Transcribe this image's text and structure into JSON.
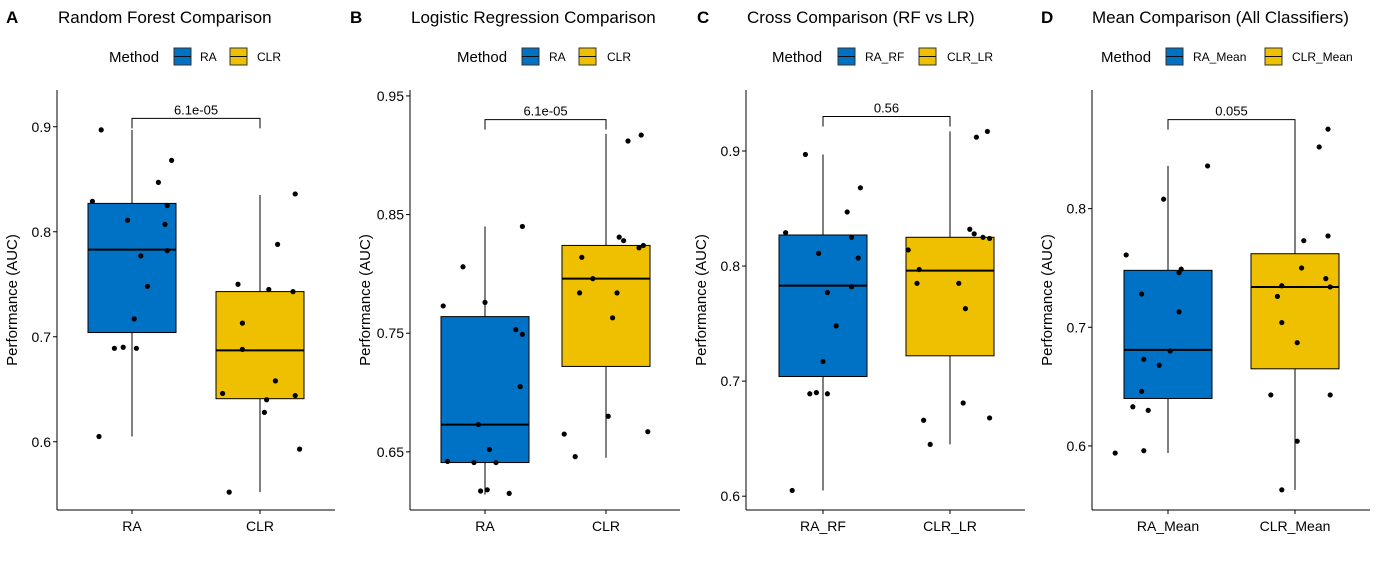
{
  "chart_data": [
    {
      "type": "box",
      "panel_letter": "A",
      "title": "Random Forest Comparison",
      "legend_title": "Method",
      "legend_position": "top",
      "categories": [
        "RA",
        "CLR"
      ],
      "colors": [
        "#0072C6",
        "#EFC000"
      ],
      "xlabel": "",
      "ylabel": "Performance (AUC)",
      "ylim": [
        0.535,
        0.935
      ],
      "yticks": [
        0.6,
        0.7,
        0.8,
        0.9
      ],
      "ytick_labels": [
        "0.6",
        "0.7",
        "0.8",
        "0.9"
      ],
      "boxes": [
        {
          "name": "RA",
          "q1": 0.704,
          "median": 0.783,
          "q3": 0.827,
          "whisker_low": 0.605,
          "whisker_high": 0.897
        },
        {
          "name": "CLR",
          "q1": 0.641,
          "median": 0.687,
          "q3": 0.743,
          "whisker_low": 0.552,
          "whisker_high": 0.835
        }
      ],
      "points": [
        {
          "group": "RA",
          "jitter": -0.14,
          "y": 0.897
        },
        {
          "group": "RA",
          "jitter": 0.18,
          "y": 0.868
        },
        {
          "group": "RA",
          "jitter": 0.12,
          "y": 0.847
        },
        {
          "group": "RA",
          "jitter": -0.18,
          "y": 0.829
        },
        {
          "group": "RA",
          "jitter": 0.16,
          "y": 0.825
        },
        {
          "group": "RA",
          "jitter": -0.02,
          "y": 0.811
        },
        {
          "group": "RA",
          "jitter": 0.15,
          "y": 0.807
        },
        {
          "group": "RA",
          "jitter": 0.16,
          "y": 0.782
        },
        {
          "group": "RA",
          "jitter": 0.04,
          "y": 0.777
        },
        {
          "group": "RA",
          "jitter": 0.07,
          "y": 0.748
        },
        {
          "group": "RA",
          "jitter": 0.01,
          "y": 0.717
        },
        {
          "group": "RA",
          "jitter": -0.04,
          "y": 0.69
        },
        {
          "group": "RA",
          "jitter": 0.02,
          "y": 0.689
        },
        {
          "group": "RA",
          "jitter": -0.08,
          "y": 0.689
        },
        {
          "group": "RA",
          "jitter": -0.15,
          "y": 0.605
        },
        {
          "group": "CLR",
          "jitter": 0.16,
          "y": 0.836
        },
        {
          "group": "CLR",
          "jitter": 0.08,
          "y": 0.788
        },
        {
          "group": "CLR",
          "jitter": -0.1,
          "y": 0.75
        },
        {
          "group": "CLR",
          "jitter": 0.04,
          "y": 0.745
        },
        {
          "group": "CLR",
          "jitter": 0.15,
          "y": 0.743
        },
        {
          "group": "CLR",
          "jitter": -0.08,
          "y": 0.713
        },
        {
          "group": "CLR",
          "jitter": -0.08,
          "y": 0.688
        },
        {
          "group": "CLR",
          "jitter": 0.07,
          "y": 0.658
        },
        {
          "group": "CLR",
          "jitter": -0.17,
          "y": 0.646
        },
        {
          "group": "CLR",
          "jitter": 0.16,
          "y": 0.644
        },
        {
          "group": "CLR",
          "jitter": 0.03,
          "y": 0.64
        },
        {
          "group": "CLR",
          "jitter": 0.02,
          "y": 0.628
        },
        {
          "group": "CLR",
          "jitter": 0.18,
          "y": 0.593
        },
        {
          "group": "CLR",
          "jitter": -0.14,
          "y": 0.552
        }
      ],
      "comparison": {
        "label": "6.1e-05",
        "y": 0.908
      }
    },
    {
      "type": "box",
      "panel_letter": "B",
      "title": "Logistic Regression Comparison",
      "legend_title": "Method",
      "legend_position": "top",
      "categories": [
        "RA",
        "CLR"
      ],
      "colors": [
        "#0072C6",
        "#EFC000"
      ],
      "xlabel": "",
      "ylabel": "Performance (AUC)",
      "ylim": [
        0.601,
        0.955
      ],
      "yticks": [
        0.65,
        0.75,
        0.85,
        0.95
      ],
      "ytick_labels": [
        "0.65",
        "0.75",
        "0.85",
        "0.95"
      ],
      "boxes": [
        {
          "name": "RA",
          "q1": 0.641,
          "median": 0.673,
          "q3": 0.764,
          "whisker_low": 0.614,
          "whisker_high": 0.84
        },
        {
          "name": "CLR",
          "q1": 0.722,
          "median": 0.796,
          "q3": 0.824,
          "whisker_low": 0.645,
          "whisker_high": 0.918
        }
      ],
      "points": [
        {
          "group": "RA",
          "jitter": 0.17,
          "y": 0.84
        },
        {
          "group": "RA",
          "jitter": -0.1,
          "y": 0.806
        },
        {
          "group": "RA",
          "jitter": 0.0,
          "y": 0.776
        },
        {
          "group": "RA",
          "jitter": -0.19,
          "y": 0.773
        },
        {
          "group": "RA",
          "jitter": 0.14,
          "y": 0.753
        },
        {
          "group": "RA",
          "jitter": 0.17,
          "y": 0.749
        },
        {
          "group": "RA",
          "jitter": 0.16,
          "y": 0.705
        },
        {
          "group": "RA",
          "jitter": -0.03,
          "y": 0.673
        },
        {
          "group": "RA",
          "jitter": 0.02,
          "y": 0.652
        },
        {
          "group": "RA",
          "jitter": -0.17,
          "y": 0.642
        },
        {
          "group": "RA",
          "jitter": -0.05,
          "y": 0.641
        },
        {
          "group": "RA",
          "jitter": 0.05,
          "y": 0.641
        },
        {
          "group": "RA",
          "jitter": -0.02,
          "y": 0.617
        },
        {
          "group": "RA",
          "jitter": 0.01,
          "y": 0.618
        },
        {
          "group": "RA",
          "jitter": 0.11,
          "y": 0.615
        },
        {
          "group": "CLR",
          "jitter": 0.16,
          "y": 0.917
        },
        {
          "group": "CLR",
          "jitter": 0.1,
          "y": 0.912
        },
        {
          "group": "CLR",
          "jitter": 0.06,
          "y": 0.831
        },
        {
          "group": "CLR",
          "jitter": 0.08,
          "y": 0.828
        },
        {
          "group": "CLR",
          "jitter": 0.15,
          "y": 0.822
        },
        {
          "group": "CLR",
          "jitter": 0.17,
          "y": 0.824
        },
        {
          "group": "CLR",
          "jitter": -0.11,
          "y": 0.814
        },
        {
          "group": "CLR",
          "jitter": -0.06,
          "y": 0.796
        },
        {
          "group": "CLR",
          "jitter": -0.12,
          "y": 0.784
        },
        {
          "group": "CLR",
          "jitter": 0.05,
          "y": 0.784
        },
        {
          "group": "CLR",
          "jitter": 0.03,
          "y": 0.763
        },
        {
          "group": "CLR",
          "jitter": 0.01,
          "y": 0.68
        },
        {
          "group": "CLR",
          "jitter": 0.19,
          "y": 0.667
        },
        {
          "group": "CLR",
          "jitter": -0.19,
          "y": 0.665
        },
        {
          "group": "CLR",
          "jitter": -0.14,
          "y": 0.646
        }
      ],
      "comparison": {
        "label": "6.1e-05",
        "y": 0.93
      }
    },
    {
      "type": "box",
      "panel_letter": "C",
      "title": "Cross Comparison (RF vs LR)",
      "legend_title": "Method",
      "legend_position": "top",
      "categories": [
        "RA_RF",
        "CLR_LR"
      ],
      "colors": [
        "#0072C6",
        "#EFC000"
      ],
      "xlabel": "",
      "ylabel": "Performance (AUC)",
      "ylim": [
        0.588,
        0.953
      ],
      "yticks": [
        0.6,
        0.7,
        0.8,
        0.9
      ],
      "ytick_labels": [
        "0.6",
        "0.7",
        "0.8",
        "0.9"
      ],
      "boxes": [
        {
          "name": "RA_RF",
          "q1": 0.704,
          "median": 0.783,
          "q3": 0.827,
          "whisker_low": 0.605,
          "whisker_high": 0.897
        },
        {
          "name": "CLR_LR",
          "q1": 0.722,
          "median": 0.796,
          "q3": 0.825,
          "whisker_low": 0.645,
          "whisker_high": 0.917
        }
      ],
      "points": [
        {
          "group": "RA_RF",
          "jitter": -0.08,
          "y": 0.897
        },
        {
          "group": "RA_RF",
          "jitter": 0.17,
          "y": 0.868
        },
        {
          "group": "RA_RF",
          "jitter": 0.11,
          "y": 0.847
        },
        {
          "group": "RA_RF",
          "jitter": -0.17,
          "y": 0.829
        },
        {
          "group": "RA_RF",
          "jitter": 0.13,
          "y": 0.825
        },
        {
          "group": "RA_RF",
          "jitter": -0.02,
          "y": 0.811
        },
        {
          "group": "RA_RF",
          "jitter": 0.16,
          "y": 0.807
        },
        {
          "group": "RA_RF",
          "jitter": 0.13,
          "y": 0.782
        },
        {
          "group": "RA_RF",
          "jitter": 0.02,
          "y": 0.777
        },
        {
          "group": "RA_RF",
          "jitter": 0.06,
          "y": 0.748
        },
        {
          "group": "RA_RF",
          "jitter": 0.0,
          "y": 0.717
        },
        {
          "group": "RA_RF",
          "jitter": -0.03,
          "y": 0.69
        },
        {
          "group": "RA_RF",
          "jitter": 0.02,
          "y": 0.689
        },
        {
          "group": "RA_RF",
          "jitter": -0.06,
          "y": 0.689
        },
        {
          "group": "RA_RF",
          "jitter": -0.14,
          "y": 0.605
        },
        {
          "group": "CLR_LR",
          "jitter": 0.17,
          "y": 0.917
        },
        {
          "group": "CLR_LR",
          "jitter": 0.12,
          "y": 0.912
        },
        {
          "group": "CLR_LR",
          "jitter": 0.09,
          "y": 0.832
        },
        {
          "group": "CLR_LR",
          "jitter": 0.11,
          "y": 0.828
        },
        {
          "group": "CLR_LR",
          "jitter": 0.15,
          "y": 0.825
        },
        {
          "group": "CLR_LR",
          "jitter": 0.18,
          "y": 0.824
        },
        {
          "group": "CLR_LR",
          "jitter": -0.19,
          "y": 0.814
        },
        {
          "group": "CLR_LR",
          "jitter": -0.14,
          "y": 0.797
        },
        {
          "group": "CLR_LR",
          "jitter": -0.15,
          "y": 0.785
        },
        {
          "group": "CLR_LR",
          "jitter": 0.04,
          "y": 0.785
        },
        {
          "group": "CLR_LR",
          "jitter": 0.07,
          "y": 0.763
        },
        {
          "group": "CLR_LR",
          "jitter": 0.06,
          "y": 0.681
        },
        {
          "group": "CLR_LR",
          "jitter": 0.18,
          "y": 0.668
        },
        {
          "group": "CLR_LR",
          "jitter": -0.12,
          "y": 0.666
        },
        {
          "group": "CLR_LR",
          "jitter": -0.09,
          "y": 0.645
        }
      ],
      "comparison": {
        "label": "0.56",
        "y": 0.93
      }
    },
    {
      "type": "box",
      "panel_letter": "D",
      "title": "Mean Comparison (All Classifiers)",
      "legend_title": "Method",
      "legend_position": "top",
      "categories": [
        "RA_Mean",
        "CLR_Mean"
      ],
      "colors": [
        "#0072C6",
        "#EFC000"
      ],
      "xlabel": "",
      "ylabel": "Performance (AUC)",
      "ylim": [
        0.546,
        0.9
      ],
      "yticks": [
        0.6,
        0.7,
        0.8
      ],
      "ytick_labels": [
        "0.6",
        "0.7",
        "0.8"
      ],
      "boxes": [
        {
          "name": "RA_Mean",
          "q1": 0.64,
          "median": 0.681,
          "q3": 0.748,
          "whisker_low": 0.594,
          "whisker_high": 0.836
        },
        {
          "name": "CLR_Mean",
          "q1": 0.665,
          "median": 0.734,
          "q3": 0.762,
          "whisker_low": 0.563,
          "whisker_high": 0.867
        }
      ],
      "points": [
        {
          "group": "RA_Mean",
          "jitter": 0.18,
          "y": 0.836
        },
        {
          "group": "RA_Mean",
          "jitter": -0.02,
          "y": 0.808
        },
        {
          "group": "RA_Mean",
          "jitter": -0.19,
          "y": 0.761
        },
        {
          "group": "RA_Mean",
          "jitter": 0.06,
          "y": 0.749
        },
        {
          "group": "RA_Mean",
          "jitter": 0.05,
          "y": 0.746
        },
        {
          "group": "RA_Mean",
          "jitter": -0.12,
          "y": 0.728
        },
        {
          "group": "RA_Mean",
          "jitter": 0.05,
          "y": 0.713
        },
        {
          "group": "RA_Mean",
          "jitter": 0.01,
          "y": 0.68
        },
        {
          "group": "RA_Mean",
          "jitter": -0.11,
          "y": 0.673
        },
        {
          "group": "RA_Mean",
          "jitter": -0.04,
          "y": 0.668
        },
        {
          "group": "RA_Mean",
          "jitter": -0.12,
          "y": 0.646
        },
        {
          "group": "RA_Mean",
          "jitter": -0.16,
          "y": 0.633
        },
        {
          "group": "RA_Mean",
          "jitter": -0.09,
          "y": 0.63
        },
        {
          "group": "RA_Mean",
          "jitter": -0.11,
          "y": 0.596
        },
        {
          "group": "RA_Mean",
          "jitter": -0.24,
          "y": 0.594
        },
        {
          "group": "CLR_Mean",
          "jitter": 0.15,
          "y": 0.867
        },
        {
          "group": "CLR_Mean",
          "jitter": 0.11,
          "y": 0.852
        },
        {
          "group": "CLR_Mean",
          "jitter": 0.15,
          "y": 0.777
        },
        {
          "group": "CLR_Mean",
          "jitter": 0.04,
          "y": 0.773
        },
        {
          "group": "CLR_Mean",
          "jitter": 0.03,
          "y": 0.75
        },
        {
          "group": "CLR_Mean",
          "jitter": 0.14,
          "y": 0.741
        },
        {
          "group": "CLR_Mean",
          "jitter": -0.06,
          "y": 0.735
        },
        {
          "group": "CLR_Mean",
          "jitter": 0.16,
          "y": 0.734
        },
        {
          "group": "CLR_Mean",
          "jitter": -0.08,
          "y": 0.726
        },
        {
          "group": "CLR_Mean",
          "jitter": -0.06,
          "y": 0.704
        },
        {
          "group": "CLR_Mean",
          "jitter": 0.01,
          "y": 0.687
        },
        {
          "group": "CLR_Mean",
          "jitter": -0.11,
          "y": 0.643
        },
        {
          "group": "CLR_Mean",
          "jitter": 0.16,
          "y": 0.643
        },
        {
          "group": "CLR_Mean",
          "jitter": 0.01,
          "y": 0.604
        },
        {
          "group": "CLR_Mean",
          "jitter": -0.06,
          "y": 0.563
        }
      ],
      "comparison": {
        "label": "0.055",
        "y": 0.875
      }
    }
  ]
}
